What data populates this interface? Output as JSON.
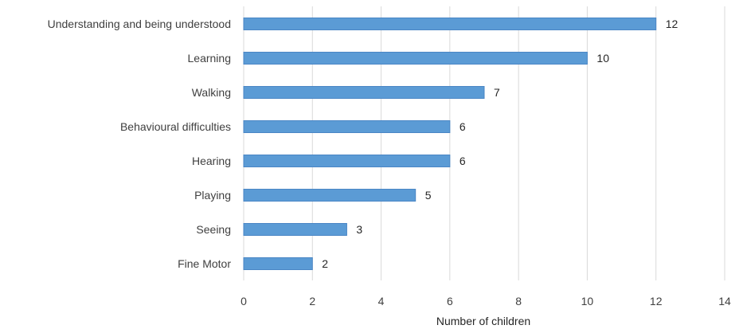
{
  "chart_data": {
    "type": "bar",
    "orientation": "horizontal",
    "title": "",
    "xlabel": "Number of children",
    "ylabel": "",
    "categories": [
      "Understanding and being understood",
      "Learning",
      "Walking",
      "Behavioural difficulties",
      "Hearing",
      "Playing",
      "Seeing",
      "Fine Motor"
    ],
    "values": [
      12,
      10,
      7,
      6,
      6,
      5,
      3,
      2
    ],
    "value_labels": [
      "12",
      "10",
      "7",
      "6",
      "6",
      "5",
      "3",
      "2"
    ],
    "xlim": [
      0,
      14
    ],
    "x_ticks": [
      0,
      2,
      4,
      6,
      8,
      10,
      12,
      14
    ],
    "x_tick_labels": [
      "0",
      "2",
      "4",
      "6",
      "8",
      "10",
      "12",
      "14"
    ],
    "grid": "vertical",
    "legend": "none",
    "bar_color": "#5b9bd5",
    "bar_border_color": "#4a86c5",
    "gridline_color": "#d9d9d9"
  }
}
